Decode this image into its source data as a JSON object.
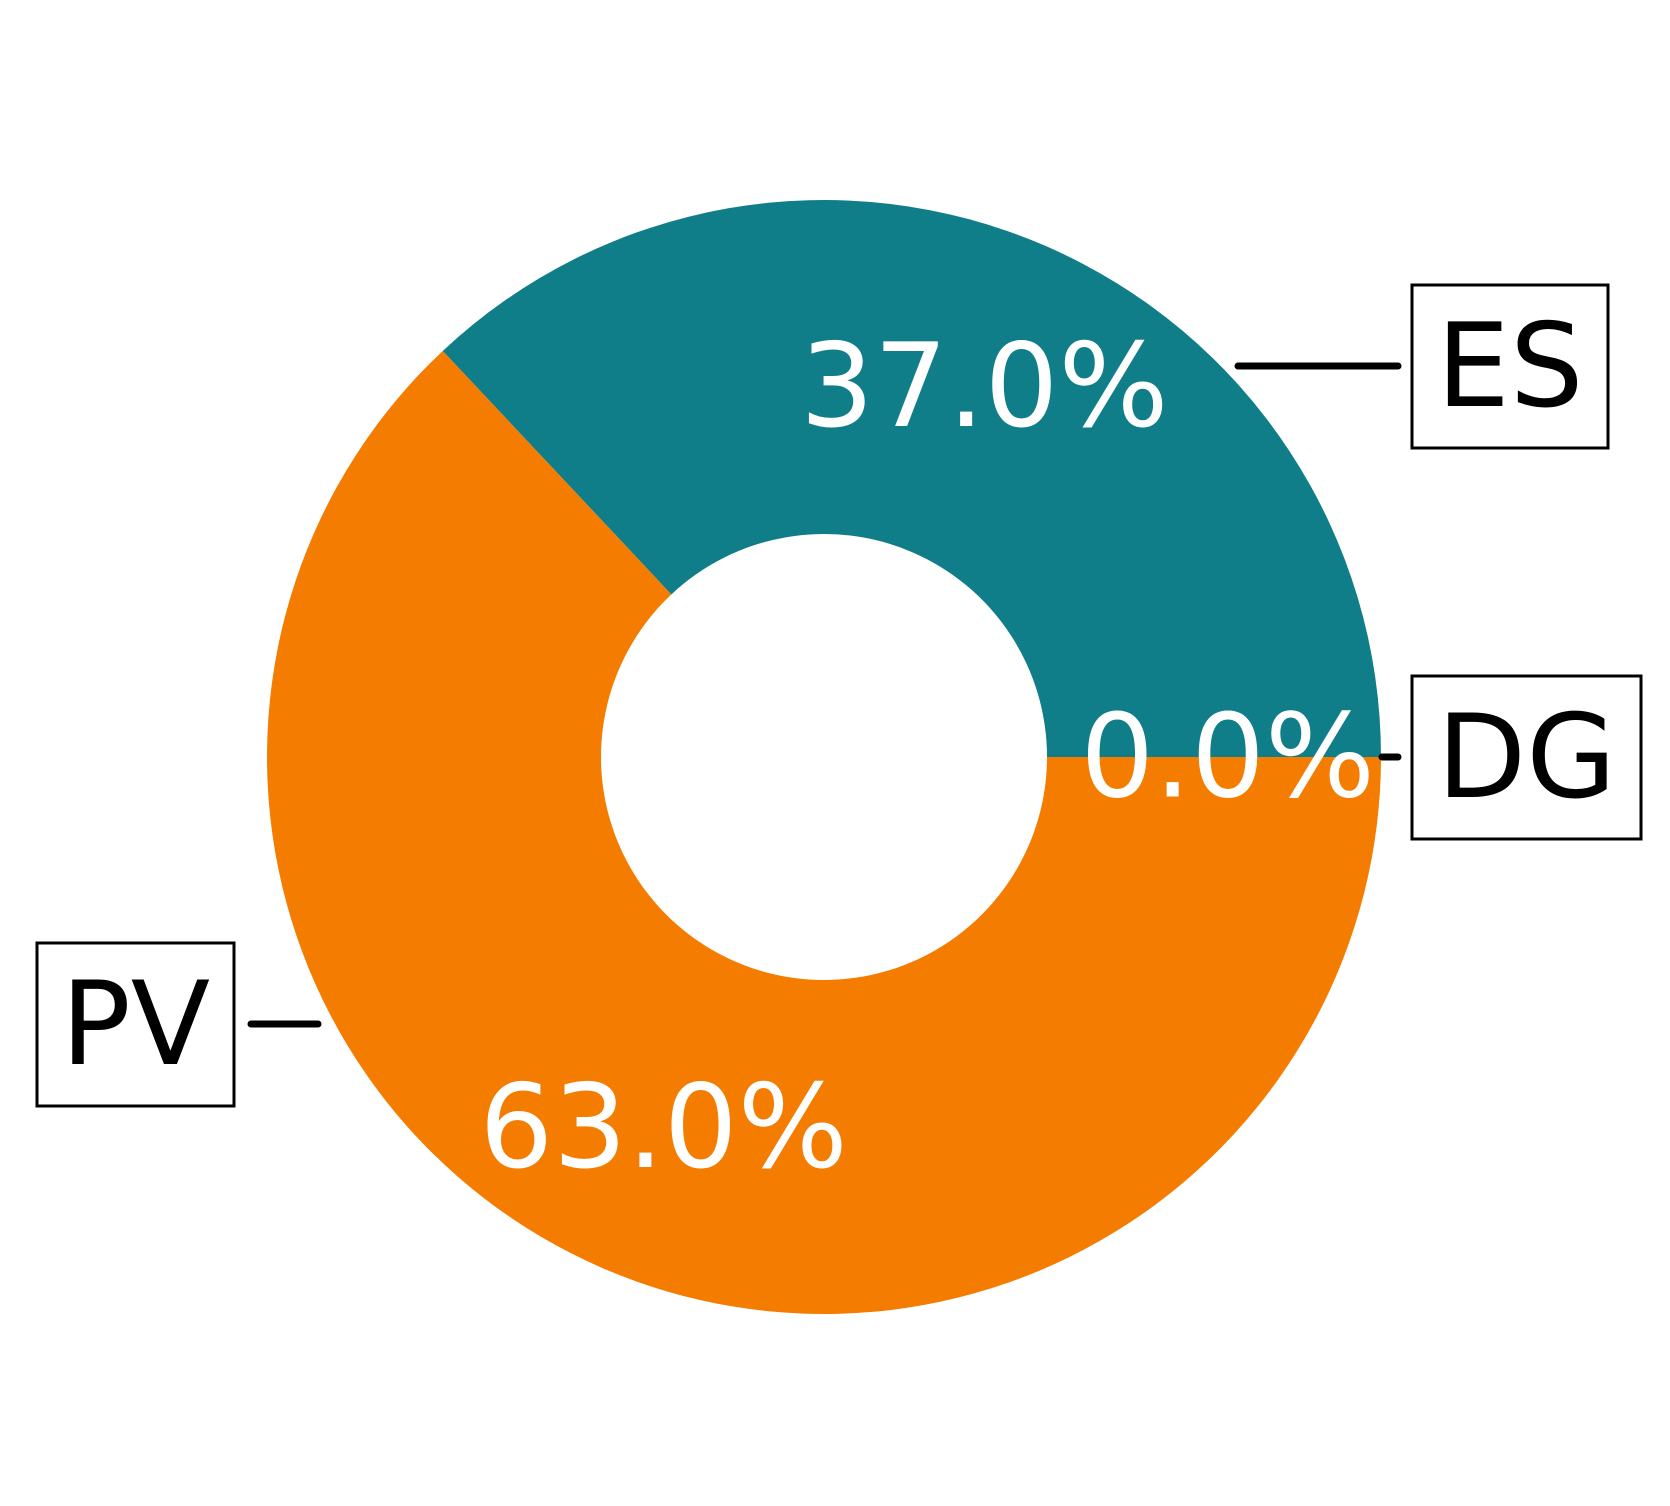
{
  "chart_data": {
    "type": "pie",
    "donut": true,
    "slices": [
      {
        "label": "DG",
        "value": 0.0,
        "display": "0.0%",
        "color": "#f47c00"
      },
      {
        "label": "ES",
        "value": 37.0,
        "display": "37.0%",
        "color": "#107e89"
      },
      {
        "label": "PV",
        "value": 63.0,
        "display": "63.0%",
        "color": "#f47c00"
      }
    ],
    "colors": {
      "es": "#107e89",
      "pv": "#f47c00",
      "label_text": "#ffffff",
      "box_text": "#000000"
    }
  }
}
